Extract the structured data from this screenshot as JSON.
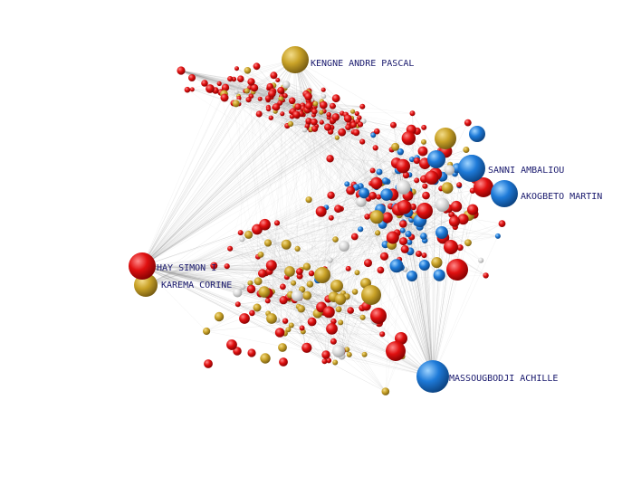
{
  "colors": {
    "red": "#e01010",
    "gold": "#c9a227",
    "blue": "#1e7ad8",
    "white": "#dddddd",
    "edge": "#9a9a9a",
    "label": "#1a1a6e"
  },
  "labeled_nodes": [
    {
      "key": "kengne",
      "label": "KENGNE ANDRE PASCAL",
      "color": "gold"
    },
    {
      "key": "sanni",
      "label": "SANNI AMBALIOU",
      "color": "blue"
    },
    {
      "key": "akogbeto",
      "label": "AKOGBETO MARTIN",
      "color": "blue"
    },
    {
      "key": "hay",
      "label": "HAY SIMON I",
      "color": "red"
    },
    {
      "key": "karema",
      "label": "KAREMA CORINE",
      "color": "gold"
    },
    {
      "key": "massougbodji",
      "label": "MASSOUGBODJI ACHILLE",
      "color": "blue"
    }
  ],
  "clusters": [
    {
      "name": "top-cluster",
      "mix": {
        "red": 0.78,
        "gold": 0.17,
        "white": 0.05
      }
    },
    {
      "name": "right-cluster",
      "mix": {
        "red": 0.45,
        "blue": 0.38,
        "gold": 0.1,
        "white": 0.07
      }
    },
    {
      "name": "bottom-cluster",
      "mix": {
        "red": 0.55,
        "gold": 0.38,
        "white": 0.07
      }
    }
  ]
}
